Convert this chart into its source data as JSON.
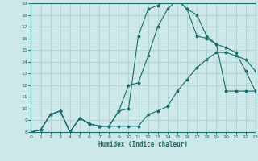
{
  "title": "",
  "xlabel": "Humidex (Indice chaleur)",
  "xlim": [
    0,
    23
  ],
  "ylim": [
    8,
    19
  ],
  "yticks": [
    8,
    9,
    10,
    11,
    12,
    13,
    14,
    15,
    16,
    17,
    18,
    19
  ],
  "xticks": [
    0,
    1,
    2,
    3,
    4,
    5,
    6,
    7,
    8,
    9,
    10,
    11,
    12,
    13,
    14,
    15,
    16,
    17,
    18,
    19,
    20,
    21,
    22,
    23
  ],
  "background_color": "#cce8e8",
  "grid_color": "#aacccc",
  "line_color": "#1a6b6b",
  "line1_x": [
    0,
    1,
    2,
    3,
    4,
    5,
    6,
    7,
    8,
    9,
    10,
    11,
    12,
    13,
    14,
    15,
    16,
    17,
    18,
    19,
    20,
    21,
    22,
    23
  ],
  "line1_y": [
    8.0,
    8.2,
    9.5,
    9.8,
    8.0,
    9.2,
    8.7,
    8.5,
    8.5,
    8.5,
    8.5,
    8.5,
    9.5,
    9.8,
    10.2,
    11.5,
    12.5,
    13.5,
    14.2,
    14.8,
    14.8,
    14.5,
    14.2,
    13.2
  ],
  "line2_x": [
    0,
    1,
    2,
    3,
    4,
    5,
    6,
    7,
    8,
    9,
    10,
    11,
    12,
    13,
    14,
    15,
    16,
    17,
    18,
    19,
    20,
    21,
    22,
    23
  ],
  "line2_y": [
    8.0,
    8.2,
    9.5,
    9.8,
    8.0,
    9.2,
    8.7,
    8.5,
    8.5,
    9.8,
    10.0,
    16.2,
    18.5,
    18.8,
    19.3,
    19.3,
    18.5,
    16.2,
    16.0,
    15.5,
    11.5,
    11.5,
    11.5,
    11.5
  ],
  "line3_x": [
    0,
    1,
    2,
    3,
    4,
    5,
    6,
    7,
    8,
    9,
    10,
    11,
    12,
    13,
    14,
    15,
    16,
    17,
    18,
    19,
    20,
    21,
    22,
    23
  ],
  "line3_y": [
    8.0,
    8.2,
    9.5,
    9.8,
    8.0,
    9.2,
    8.7,
    8.5,
    8.5,
    9.8,
    12.0,
    12.2,
    14.5,
    17.0,
    18.5,
    19.3,
    18.5,
    18.0,
    16.2,
    15.5,
    15.2,
    14.8,
    13.2,
    11.5
  ]
}
